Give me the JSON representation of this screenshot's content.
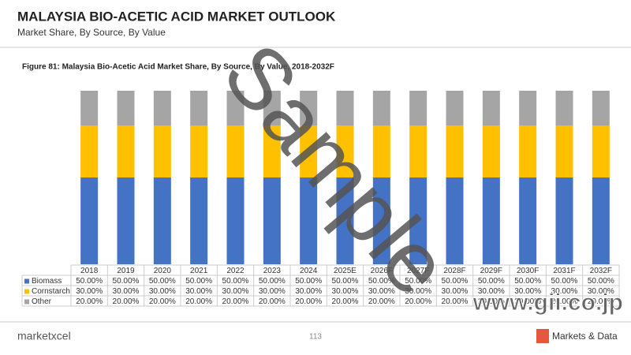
{
  "header": {
    "title": "MALAYSIA BIO-ACETIC ACID MARKET OUTLOOK",
    "subtitle": "Market Share, By Source, By Value"
  },
  "chart_data": {
    "type": "bar",
    "stacked": true,
    "title": "Figure 81: Malaysia Bio-Acetic Acid Market Share, By Source, By Value, 2018-2032F",
    "categories": [
      "2018",
      "2019",
      "2020",
      "2021",
      "2022",
      "2023",
      "2024",
      "2025E",
      "2026F",
      "2027F",
      "2028F",
      "2029F",
      "2030F",
      "2031F",
      "2032F"
    ],
    "ylim": [
      0,
      100
    ],
    "series": [
      {
        "name": "Biomass",
        "color": "#4472c4",
        "values": [
          50,
          50,
          50,
          50,
          50,
          50,
          50,
          50,
          50,
          50,
          50,
          50,
          50,
          50,
          50
        ],
        "value_labels": [
          "50.00%",
          "50.00%",
          "50.00%",
          "50.00%",
          "50.00%",
          "50.00%",
          "50.00%",
          "50.00%",
          "50.00%",
          "50.00%",
          "50.00%",
          "50.00%",
          "50.00%",
          "50.00%",
          "50.00%"
        ]
      },
      {
        "name": "Cornstarch",
        "color": "#ffc000",
        "values": [
          30,
          30,
          30,
          30,
          30,
          30,
          30,
          30,
          30,
          30,
          30,
          30,
          30,
          30,
          30
        ],
        "value_labels": [
          "30.00%",
          "30.00%",
          "30.00%",
          "30.00%",
          "30.00%",
          "30.00%",
          "30.00%",
          "30.00%",
          "30.00%",
          "30.00%",
          "30.00%",
          "30.00%",
          "30.00%",
          "30.00%",
          "30.00%"
        ]
      },
      {
        "name": "Other",
        "color": "#a5a5a5",
        "values": [
          20,
          20,
          20,
          20,
          20,
          20,
          20,
          20,
          20,
          20,
          20,
          20,
          20,
          20,
          20
        ],
        "value_labels": [
          "20.00%",
          "20.00%",
          "20.00%",
          "20.00%",
          "20.00%",
          "20.00%",
          "20.00%",
          "20.00%",
          "20.00%",
          "20.00%",
          "20.00%",
          "20.00%",
          "20.00%",
          "20.00%",
          "20.00%"
        ]
      }
    ]
  },
  "watermark": "Sample",
  "footer": {
    "brand": "marketxcel",
    "page": "113",
    "partner": "Markets & Data",
    "site": "www.gii.co.jp"
  }
}
